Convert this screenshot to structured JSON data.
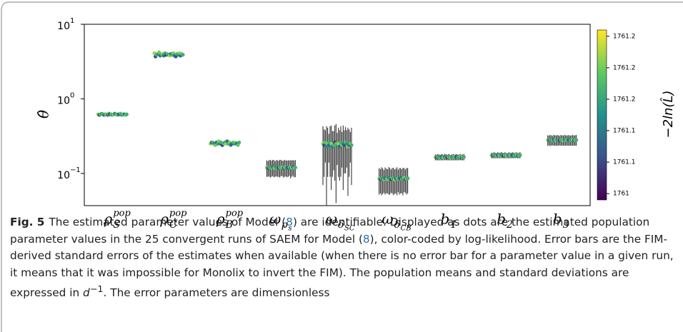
{
  "chart_data": {
    "type": "scatter-errorbar",
    "y_label": "θ̂",
    "yscale": "log",
    "ylim": [
      0.037,
      10
    ],
    "yticks": [
      {
        "value": 0.1,
        "label": "10",
        "sup": "−1"
      },
      {
        "value": 1,
        "label": "10",
        "sup": "0"
      },
      {
        "value": 10,
        "label": "10",
        "sup": "1"
      }
    ],
    "categories": [
      {
        "base": "ρ",
        "sub": "S",
        "sup": "pop"
      },
      {
        "base": "ρ",
        "sub": "C",
        "sup": "pop"
      },
      {
        "base": "ρ",
        "sub": "B",
        "sup": "pop"
      },
      {
        "base": "ω",
        "sub": "ρ",
        "subsub": "s"
      },
      {
        "base": "ω",
        "sub": "δ",
        "subsub": "SC"
      },
      {
        "base": "ω",
        "sub": "δ",
        "subsub": "CB"
      },
      {
        "base": "b",
        "sub": "1"
      },
      {
        "base": "b",
        "sub": "2"
      },
      {
        "base": "b",
        "sub": "3"
      }
    ],
    "colormap": "viridis",
    "color_label": "−2ln(L̂)",
    "clim": [
      1760.99,
      1761.26
    ],
    "cticks": [
      {
        "value": 1761.0,
        "label": "1761"
      },
      {
        "value": 1761.05,
        "label": "1761.1"
      },
      {
        "value": 1761.1,
        "label": "1761.1"
      },
      {
        "value": 1761.15,
        "label": "1761.2"
      },
      {
        "value": 1761.2,
        "label": "1761.2"
      },
      {
        "value": 1761.25,
        "label": "1761.2"
      }
    ],
    "loglik": [
      1761.22,
      1761.05,
      1761.18,
      1761.12,
      1761.2,
      1761.08,
      1761.15,
      1761.21,
      1761.1,
      1761.17,
      1761.03,
      1761.19,
      1761.14,
      1761.22,
      1761.09,
      1761.16,
      1761.2,
      1761.11,
      1761.06,
      1761.18,
      1761.13,
      1761.21,
      1761.07,
      1761.19,
      1761.16
    ],
    "series": [
      {
        "values": [
          0.62,
          0.61,
          0.62,
          0.63,
          0.62,
          0.61,
          0.62,
          0.62,
          0.61,
          0.63,
          0.62,
          0.62,
          0.61,
          0.62,
          0.63,
          0.62,
          0.61,
          0.62,
          0.62,
          0.63,
          0.61,
          0.62,
          0.62,
          0.61,
          0.62
        ],
        "errors": [
          0.03,
          0.035,
          0.03,
          0.03,
          0.04,
          0.03,
          0.035,
          0.03,
          0.03,
          0.04,
          0.03,
          0.035,
          0.03,
          0.03,
          0.04,
          0.03,
          0.03,
          0.035,
          0.03,
          0.04,
          0.03,
          0.03,
          0.035,
          0.03,
          0.03
        ]
      },
      {
        "values": [
          4.1,
          3.7,
          3.9,
          4.0,
          4.2,
          3.8,
          3.9,
          4.0,
          3.8,
          4.1,
          3.9,
          4.0,
          3.9,
          3.8,
          4.0,
          3.9,
          4.1,
          3.8,
          3.7,
          4.0,
          3.9,
          4.1,
          3.8,
          4.0,
          3.9
        ]
      },
      {
        "values": [
          0.25,
          0.26,
          0.26,
          0.25,
          0.24,
          0.26,
          0.25,
          0.27,
          0.25,
          0.26,
          0.24,
          0.25,
          0.26,
          0.25,
          0.27,
          0.25,
          0.26,
          0.24,
          0.25,
          0.26,
          0.25,
          0.26,
          0.25,
          0.24,
          0.26
        ]
      },
      {
        "values": [
          0.12,
          0.118,
          0.121,
          0.12,
          0.119,
          0.122,
          0.12,
          0.118,
          0.121,
          0.12,
          0.119,
          0.12,
          0.122,
          0.12,
          0.118,
          0.121,
          0.12,
          0.119,
          0.12,
          0.121,
          0.118,
          0.12,
          0.122,
          0.119,
          0.12
        ],
        "errors": [
          0.03,
          0.028,
          0.03,
          0.032,
          0.029,
          0.03,
          0.031,
          0.028,
          0.03,
          0.03,
          0.029,
          0.032,
          0.03,
          0.028,
          0.03,
          0.031,
          0.029,
          0.03,
          0.03,
          0.028,
          0.032,
          0.03,
          0.029,
          0.03,
          0.031
        ]
      },
      {
        "values": [
          0.25,
          0.24,
          0.26,
          0.23,
          0.25,
          0.24,
          0.26,
          0.25,
          0.23,
          0.24,
          0.26,
          0.25,
          0.24,
          0.25,
          0.23,
          0.26,
          0.24,
          0.25,
          0.24,
          0.26,
          0.25,
          0.23,
          0.24,
          0.25,
          0.24
        ],
        "errors": [
          0.18,
          0.15,
          0.12,
          0.2,
          0.16,
          0.1,
          0.17,
          0.19,
          0.14,
          0.13,
          0.18,
          0.21,
          0.11,
          0.16,
          0.15,
          0.17,
          0.12,
          0.19,
          0.14,
          0.16,
          0.13,
          0.18,
          0.15,
          0.11,
          0.17
        ]
      },
      {
        "values": [
          0.085,
          0.084,
          0.086,
          0.085,
          0.083,
          0.086,
          0.085,
          0.084,
          0.087,
          0.085,
          0.084,
          0.086,
          0.085,
          0.083,
          0.085,
          0.086,
          0.084,
          0.085,
          0.086,
          0.084,
          0.085,
          0.087,
          0.084,
          0.085,
          0.086
        ],
        "errors": [
          0.033,
          0.03,
          0.035,
          0.032,
          0.028,
          0.034,
          0.031,
          0.03,
          0.035,
          0.033,
          0.029,
          0.032,
          0.034,
          0.03,
          0.031,
          0.035,
          0.028,
          0.033,
          0.032,
          0.03,
          0.034,
          0.031,
          0.029,
          0.033,
          0.032
        ]
      },
      {
        "values": [
          0.165,
          0.164,
          0.166,
          0.165,
          0.163,
          0.166,
          0.165,
          0.164,
          0.167,
          0.165,
          0.164,
          0.166,
          0.165,
          0.163,
          0.165,
          0.166,
          0.164,
          0.165,
          0.166,
          0.164,
          0.165,
          0.167,
          0.164,
          0.165,
          0.166
        ],
        "errors": [
          0.015,
          0.014,
          0.016,
          0.015,
          0.013,
          0.016,
          0.015,
          0.014,
          0.016,
          0.015,
          0.014,
          0.016,
          0.015,
          0.013,
          0.015,
          0.016,
          0.014,
          0.015,
          0.016,
          0.014,
          0.015,
          0.016,
          0.014,
          0.015,
          0.016
        ]
      },
      {
        "values": [
          0.175,
          0.174,
          0.176,
          0.175,
          0.173,
          0.176,
          0.175,
          0.174,
          0.177,
          0.175,
          0.174,
          0.176,
          0.175,
          0.173,
          0.175,
          0.176,
          0.174,
          0.175,
          0.176,
          0.174,
          0.175,
          0.177,
          0.174,
          0.175,
          0.176
        ],
        "errors": [
          0.015,
          0.014,
          0.016,
          0.015,
          0.013,
          0.016,
          0.015,
          0.014,
          0.016,
          0.015,
          0.014,
          0.016,
          0.015,
          0.013,
          0.015,
          0.016,
          0.014,
          0.015,
          0.016,
          0.014,
          0.015,
          0.016,
          0.014,
          0.015,
          0.016
        ]
      },
      {
        "values": [
          0.28,
          0.279,
          0.281,
          0.28,
          0.278,
          0.282,
          0.28,
          0.279,
          0.281,
          0.28,
          0.278,
          0.281,
          0.28,
          0.279,
          0.282,
          0.28,
          0.279,
          0.281,
          0.28,
          0.278,
          0.28,
          0.282,
          0.279,
          0.28,
          0.281
        ],
        "errors": [
          0.045,
          0.042,
          0.048,
          0.044,
          0.04,
          0.046,
          0.045,
          0.043,
          0.047,
          0.044,
          0.041,
          0.046,
          0.045,
          0.042,
          0.048,
          0.044,
          0.043,
          0.045,
          0.046,
          0.042,
          0.044,
          0.047,
          0.043,
          0.045,
          0.046
        ]
      }
    ]
  },
  "caption": {
    "label": "Fig. 5",
    "parts": [
      "The estimated parameter values of Model (",
      "8",
      ") are identifiable. Displayed as dots are the estimated population parameter values in the 25 convergent runs of SAEM for Model (",
      "8",
      "), color-coded by log-likelihood. Error bars are the FIM-derived standard errors of the estimates when available (when there is no error bar for a parameter value in a given run, it means that it was impossible for Monolix to invert the FIM). The population means and standard deviations are expressed in ",
      "d",
      "−1",
      ". The error parameters are dimensionless"
    ]
  }
}
